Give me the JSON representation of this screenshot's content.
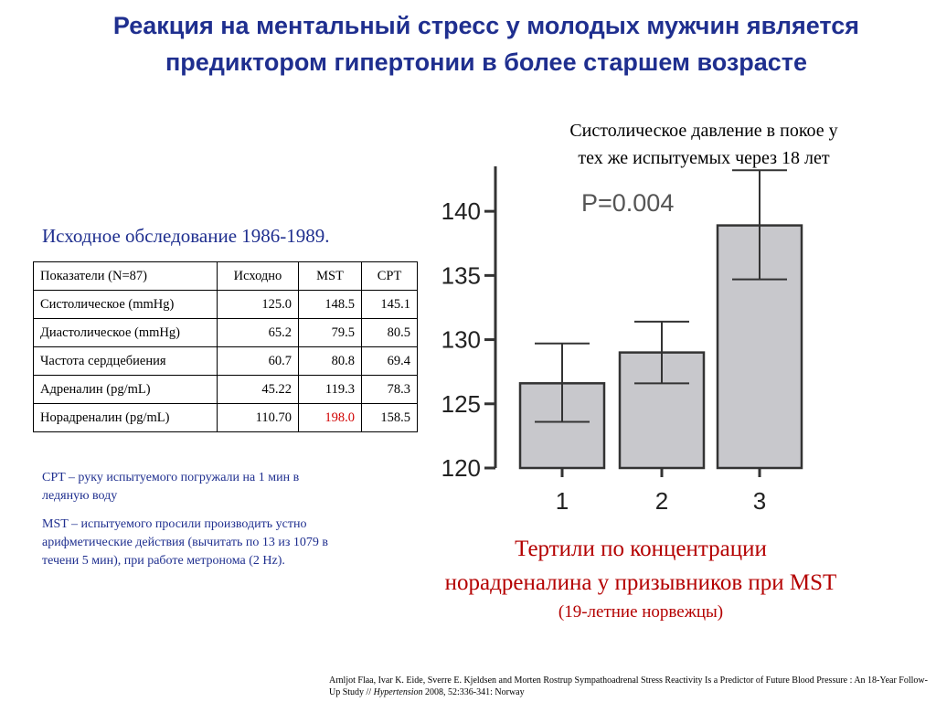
{
  "slide": {
    "title_line1": "Реакция на ментальный стресс у молодых мужчин является",
    "title_line2": "предиктором гипертонии в более старшем возрасте",
    "chart_caption_line1": "Систолическое давление в покое  у",
    "chart_caption_line2": "тех же испытуемых через 18 лет",
    "study_heading": "Исходное обследование 1986-1989.",
    "note_cpt": "CPT – руку испытуемого погружали на 1 мин в ледяную воду",
    "note_mst": "MST – испытуемого просили производить устно арифметические действия (вычитать по 13 из 1079 в течени 5 мин), при работе метронома (2 Hz).",
    "red_caption_line1": "Тертили по концентрации",
    "red_caption_line2": "норадреналина у призывников при MST",
    "red_caption_line3": "(19-летние норвежцы)",
    "reference_part1": "Arnljot Flaa, Ivar K. Eide, Sverre E. Kjeldsen and Morten Rostrup  Sympathoadrenal Stress Reactivity Is a Predictor of Future Blood Pressure : An 18-Year Follow-Up Study // ",
    "reference_journal": "Hypertension",
    "reference_part2": " 2008, 52:336-341:    Norway"
  },
  "table": {
    "headers": [
      "Показатели  (N=87)",
      "Исходно",
      "MST",
      "CPT"
    ],
    "rows": [
      [
        "Систолическое (mmHg)",
        "125.0",
        "148.5",
        "145.1"
      ],
      [
        "Диастолическое (mmHg)",
        "65.2",
        "79.5",
        "80.5"
      ],
      [
        "Частота сердцебиения",
        "60.7",
        "80.8",
        "69.4"
      ],
      [
        "Адреналин (pg/mL)",
        "45.22",
        "119.3",
        "78.3"
      ],
      [
        "Норадреналин (pg/mL)",
        "110.70",
        "198.0",
        "158.5"
      ]
    ],
    "highlight_color": "#d10000"
  },
  "chart_data": {
    "type": "bar",
    "categories": [
      "1",
      "2",
      "3"
    ],
    "values": [
      126.6,
      129.0,
      138.9
    ],
    "error_low": [
      123.6,
      126.6,
      134.7
    ],
    "error_high": [
      129.7,
      131.4,
      143.2
    ],
    "yticks": [
      120,
      125,
      130,
      135,
      140
    ],
    "ylim": [
      120,
      143.5
    ],
    "annotation": "P=0.004",
    "bar_color": "#c8c8cc",
    "grid": false
  }
}
